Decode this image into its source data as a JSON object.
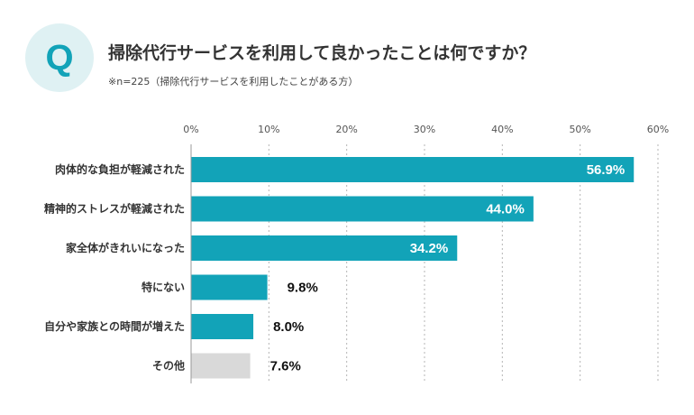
{
  "badge": {
    "letter": "Q"
  },
  "title": "掃除代行サービスを利用して良かったことは何ですか？",
  "note": "※n=225（掃除代行サービスを利用したことがある方）",
  "colors": {
    "accent": "#12a3b8",
    "other": "#d9d9d9",
    "badge_bg": "#dff1f3"
  },
  "chart_data": {
    "type": "bar",
    "orientation": "horizontal",
    "categories": [
      "肉体的な負担が軽減された",
      "精神的ストレスが軽減された",
      "家全体がきれいになった",
      "特にない",
      "自分や家族との時間が増えた",
      "その他"
    ],
    "values": [
      56.9,
      44.0,
      34.2,
      9.8,
      8.0,
      7.6
    ],
    "value_labels": [
      "56.9%",
      "44.0%",
      "34.2%",
      "9.8%",
      "8.0%",
      "7.6%"
    ],
    "xlim": [
      0,
      60
    ],
    "xticks": [
      0,
      10,
      20,
      30,
      40,
      50,
      60
    ],
    "xtick_labels": [
      "0%",
      "10%",
      "20%",
      "30%",
      "40%",
      "50%",
      "60%"
    ],
    "grid": true
  }
}
